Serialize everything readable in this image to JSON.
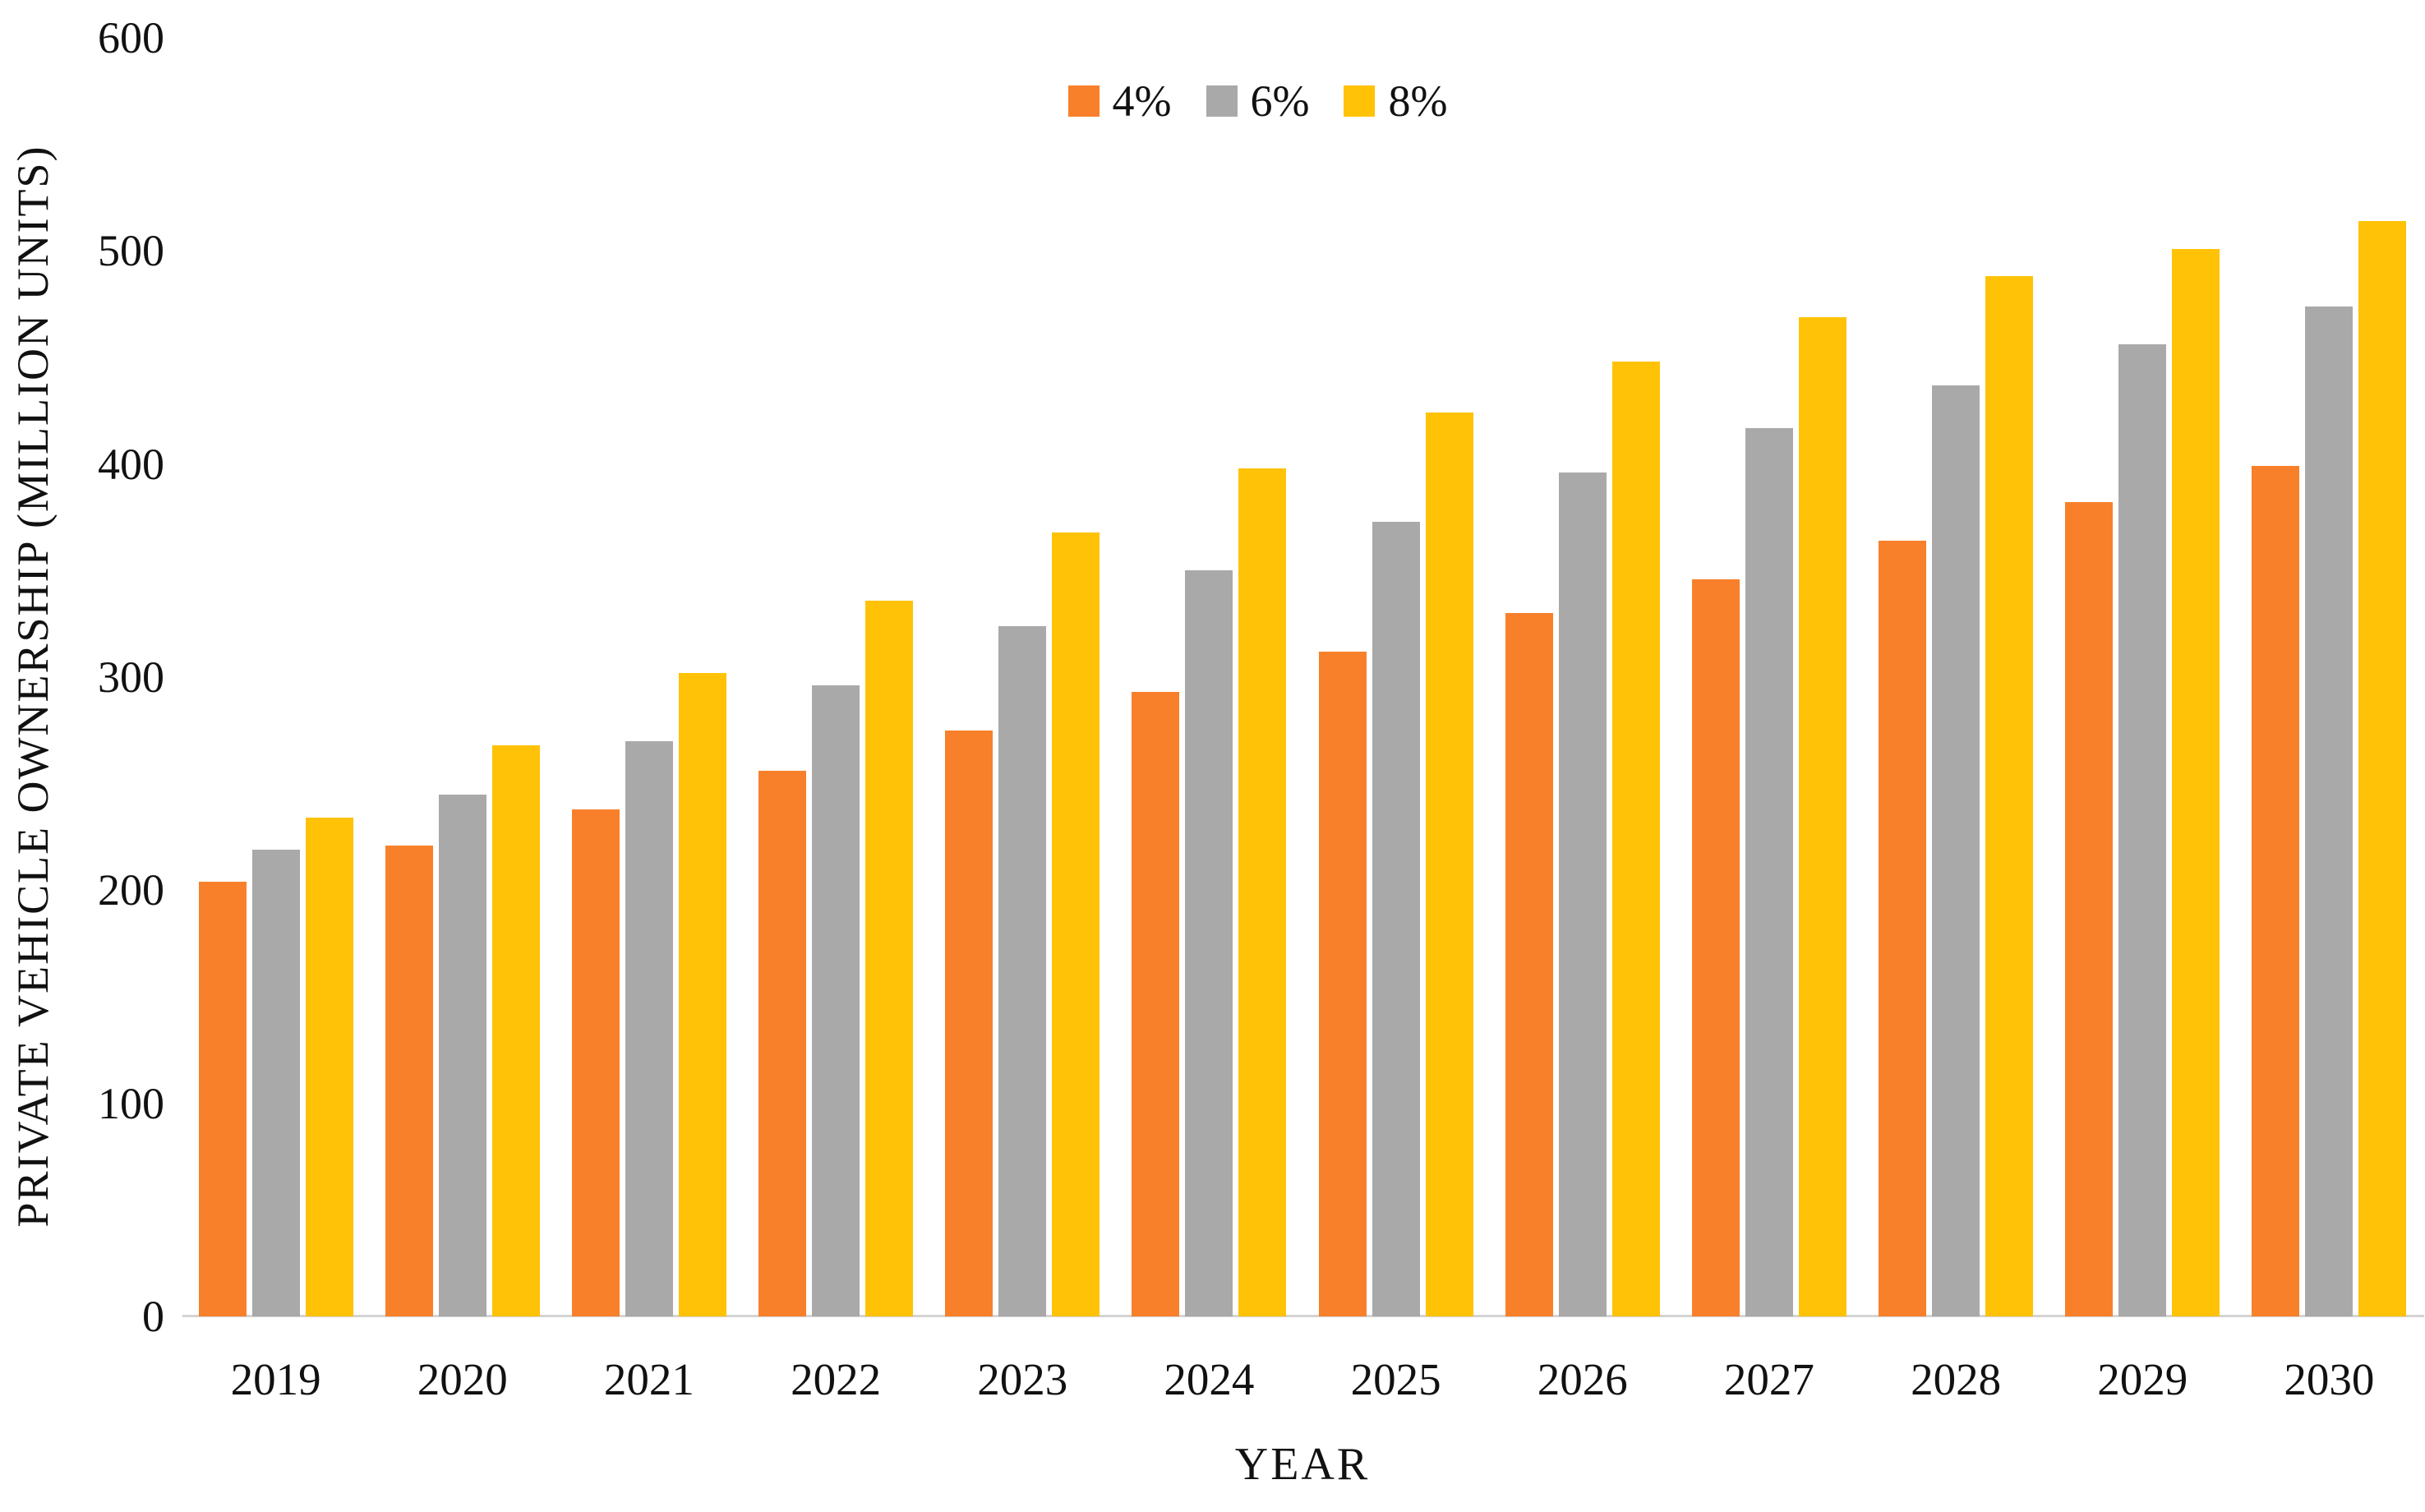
{
  "chart": {
    "y_axis_title": "PRIVATE VEHICLE OWNERSHIP (MILLION UNITS)",
    "x_axis_title": "YEAR"
  },
  "legend": {
    "position": "top-center",
    "items": [
      {
        "label": "4%",
        "color": "#F8802B",
        "pattern": "solid"
      },
      {
        "label": "6%",
        "color": "#A9A9A9",
        "pattern": "dots"
      },
      {
        "label": "8%",
        "color": "#FFC206",
        "pattern": "solid"
      }
    ]
  },
  "chart_data": {
    "type": "bar",
    "title": "",
    "categories": [
      "2019",
      "2020",
      "2021",
      "2022",
      "2023",
      "2024",
      "2025",
      "2026",
      "2027",
      "2028",
      "2029",
      "2030"
    ],
    "series": [
      {
        "name": "4%",
        "color": "#F8802B",
        "pattern": "solid",
        "values": [
          204,
          221,
          238,
          256,
          275,
          293,
          312,
          330,
          346,
          364,
          382,
          399
        ]
      },
      {
        "name": "6%",
        "color": "#A9A9A9",
        "pattern": "dots",
        "values": [
          219,
          245,
          270,
          296,
          324,
          350,
          373,
          396,
          417,
          437,
          456,
          474
        ]
      },
      {
        "name": "8%",
        "color": "#FFC206",
        "pattern": "solid",
        "values": [
          234,
          268,
          302,
          336,
          368,
          398,
          424,
          448,
          469,
          488,
          501,
          514
        ]
      }
    ],
    "xlabel": "YEAR",
    "ylabel": "PRIVATE VEHICLE OWNERSHIP (MILLION UNITS)",
    "ylim": [
      0,
      600
    ],
    "yticks": [
      0,
      100,
      200,
      300,
      400,
      500,
      600
    ],
    "grid": false,
    "legend_position": "top-center",
    "axis_line_color": "#d4d4d4"
  }
}
